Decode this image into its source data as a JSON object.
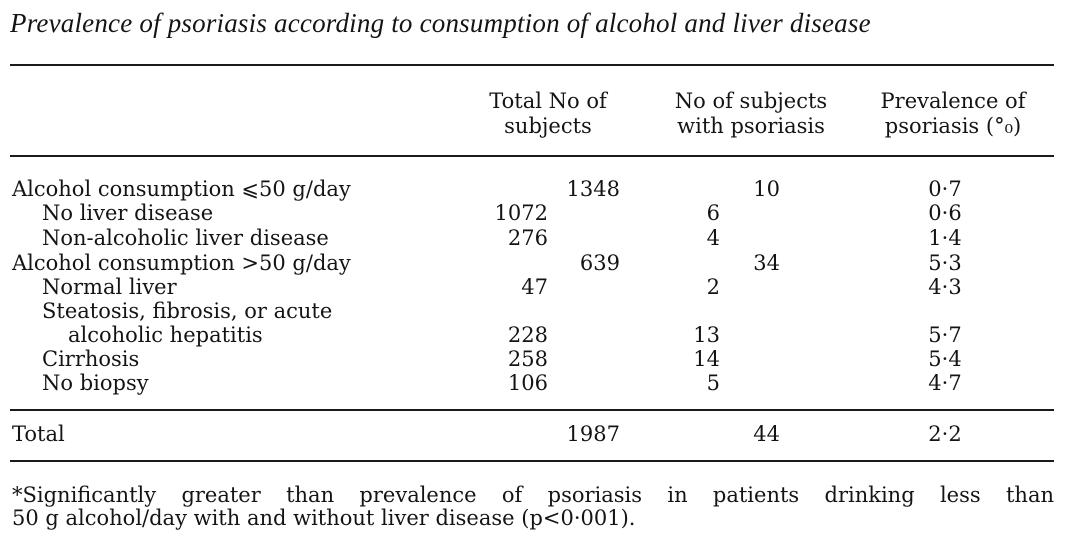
{
  "title": "Prevalence of psoriasis according to consumption of alcohol and liver disease",
  "headers": {
    "col1": [
      "Total No of",
      "subjects"
    ],
    "col2": [
      "No of subjects",
      "with psoriasis"
    ],
    "col3": [
      "Prevalence of",
      "psoriasis (°₀)"
    ]
  },
  "rows": [
    {
      "label": "Alcohol consumption ⩽50 g/day",
      "total_group": "1348",
      "psor_group": "10",
      "prev": "0·7"
    },
    {
      "label": "No liver disease",
      "total_sub": "1072",
      "psor_sub": "6",
      "prev": "0·6"
    },
    {
      "label": "Non-alcoholic liver disease",
      "total_sub": "276",
      "psor_sub": "4",
      "prev": "1·4"
    },
    {
      "label": "Alcohol consumption >50 g/day",
      "total_group": "639",
      "psor_group": "34",
      "prev": "5·3"
    },
    {
      "label": "Normal liver",
      "total_sub": "47",
      "psor_sub": "2",
      "prev": "4·3"
    },
    {
      "label": "Steatosis, fibrosis, or acute"
    },
    {
      "label": "alcoholic hepatitis",
      "total_sub": "228",
      "psor_sub": "13",
      "prev": "5·7"
    },
    {
      "label": "Cirrhosis",
      "total_sub": "258",
      "psor_sub": "14",
      "prev": "5·4"
    },
    {
      "label": "No biopsy",
      "total_sub": "106",
      "psor_sub": "5",
      "prev": "4·7"
    }
  ],
  "total": {
    "label": "Total",
    "total": "1987",
    "psor": "44",
    "prev": "2·2"
  },
  "footnote": {
    "line1": "*Significantly greater than prevalence of psoriasis in patients drinking less than",
    "line2": "50 g alcohol/day with and without liver disease (p<0·001)."
  }
}
